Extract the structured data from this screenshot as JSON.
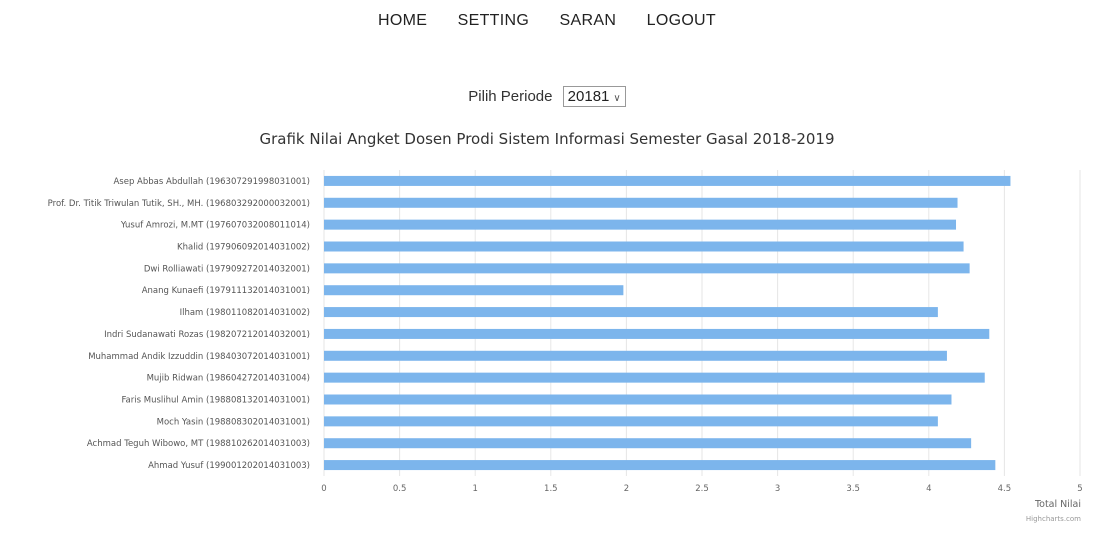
{
  "nav": {
    "home": "HOME",
    "setting": "SETTING",
    "saran": "SARAN",
    "logout": "LOGOUT"
  },
  "periode": {
    "label": "Pilih Periode",
    "selected": "20181"
  },
  "credit": "Highcharts.com",
  "colors": {
    "bar": "#7cb5ec",
    "grid": "#e6e6e6"
  },
  "chart_data": {
    "type": "bar",
    "orientation": "horizontal",
    "title": "Grafik Nilai Angket Dosen Prodi Sistem Informasi Semester Gasal 2018-2019",
    "xlabel": "",
    "ylabel": "Total Nilai",
    "ylim": [
      0,
      5
    ],
    "ticks": [
      "0",
      "0.5",
      "1",
      "1.5",
      "2",
      "2.5",
      "3",
      "3.5",
      "4",
      "4.5",
      "5"
    ],
    "grid": true,
    "categories": [
      "Asep Abbas Abdullah (196307291998031001)",
      "Prof. Dr. Titik Triwulan Tutik, SH., MH. (196803292000032001)",
      "Yusuf Amrozi, M.MT (197607032008011014)",
      "Khalid (197906092014031002)",
      "Dwi Rolliawati (197909272014032001)",
      "Anang Kunaefi (197911132014031001)",
      "Ilham (198011082014031002)",
      "Indri Sudanawati Rozas (198207212014032001)",
      "Muhammad Andik Izzuddin (198403072014031001)",
      "Mujib Ridwan (198604272014031004)",
      "Faris Muslihul Amin (198808132014031001)",
      "Moch Yasin (198808302014031001)",
      "Achmad Teguh Wibowo, MT (198810262014031003)",
      "Ahmad Yusuf (199001202014031003)"
    ],
    "values": [
      4.54,
      4.19,
      4.18,
      4.23,
      4.27,
      1.98,
      4.06,
      4.4,
      4.12,
      4.37,
      4.15,
      4.06,
      4.28,
      4.44
    ]
  }
}
